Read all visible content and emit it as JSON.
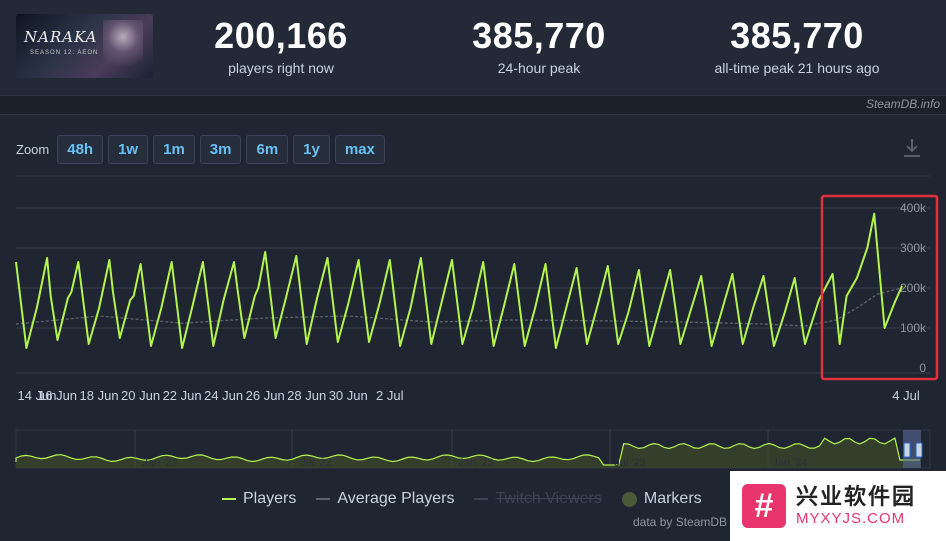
{
  "game": {
    "logo_title": "NARAKA",
    "logo_subtitle": "SEASON 12: AEON"
  },
  "stats": [
    {
      "value": "200,166",
      "label": "players right now"
    },
    {
      "value": "385,770",
      "label": "24-hour peak"
    },
    {
      "value": "385,770",
      "label": "all-time peak 21 hours ago"
    }
  ],
  "credit": "SteamDB.info",
  "zoom": {
    "label": "Zoom",
    "options": [
      "48h",
      "1w",
      "1m",
      "3m",
      "6m",
      "1y",
      "max"
    ]
  },
  "legend": {
    "players": "Players",
    "average": "Average Players",
    "twitch": "Twitch Viewers",
    "markers": "Markers"
  },
  "data_credit": "data by SteamDB",
  "watermark": {
    "main": "兴业软件园",
    "sub": "MYXYJS.COM",
    "logo_glyph": "#"
  },
  "colors": {
    "players": "#b4f44e",
    "average": "#5d6470",
    "twitch": "#3c4453",
    "highlight": "#e0323c",
    "navigator_fill": "#3d4a2a"
  },
  "chart_data": {
    "type": "line",
    "ylim": [
      0,
      400000
    ],
    "y_ticks": [
      "0",
      "100k",
      "200k",
      "300k",
      "400k"
    ],
    "x_ticks": [
      "14 Jun",
      "16 Jun",
      "18 Jun",
      "20 Jun",
      "22 Jun",
      "24 Jun",
      "26 Jun",
      "28 Jun",
      "30 Jun",
      "2 Jul",
      "4 Jul"
    ],
    "navigator_labels": [
      "Jan '22",
      "Jul '22",
      "Jan '23",
      "Jul '23",
      "Jan '24"
    ],
    "series": [
      {
        "name": "Players",
        "points": [
          [
            0,
            265000
          ],
          [
            0.5,
            50000
          ],
          [
            1,
            150000
          ],
          [
            1.5,
            275000
          ],
          [
            1.67,
            180000
          ],
          [
            2,
            70000
          ],
          [
            2.5,
            175000
          ],
          [
            2.67,
            190000
          ],
          [
            3,
            265000
          ],
          [
            3.5,
            60000
          ],
          [
            4,
            150000
          ],
          [
            4.5,
            270000
          ],
          [
            4.67,
            190000
          ],
          [
            5,
            75000
          ],
          [
            5.5,
            170000
          ],
          [
            5.67,
            180000
          ],
          [
            6,
            260000
          ],
          [
            6.5,
            55000
          ],
          [
            7,
            150000
          ],
          [
            7.5,
            265000
          ],
          [
            8,
            50000
          ],
          [
            8.5,
            155000
          ],
          [
            9,
            265000
          ],
          [
            9.5,
            55000
          ],
          [
            10,
            170000
          ],
          [
            10.5,
            265000
          ],
          [
            10.67,
            195000
          ],
          [
            11,
            75000
          ],
          [
            11.5,
            180000
          ],
          [
            11.67,
            200000
          ],
          [
            12,
            290000
          ],
          [
            12.5,
            75000
          ],
          [
            13,
            175000
          ],
          [
            13.5,
            280000
          ],
          [
            14,
            60000
          ],
          [
            14.5,
            175000
          ],
          [
            15,
            275000
          ],
          [
            15.5,
            65000
          ],
          [
            16,
            160000
          ],
          [
            16.5,
            270000
          ],
          [
            17,
            65000
          ],
          [
            17.5,
            160000
          ],
          [
            18,
            270000
          ],
          [
            18.5,
            55000
          ],
          [
            19,
            150000
          ],
          [
            19.5,
            275000
          ],
          [
            20,
            60000
          ],
          [
            20.5,
            165000
          ],
          [
            21,
            270000
          ],
          [
            21.5,
            60000
          ],
          [
            22,
            150000
          ],
          [
            22.5,
            265000
          ],
          [
            23,
            55000
          ],
          [
            23.5,
            155000
          ],
          [
            24,
            260000
          ],
          [
            24.5,
            55000
          ],
          [
            25,
            150000
          ],
          [
            25.5,
            260000
          ],
          [
            26,
            50000
          ],
          [
            26.5,
            150000
          ],
          [
            27,
            250000
          ],
          [
            27.5,
            60000
          ],
          [
            28,
            155000
          ],
          [
            28.5,
            255000
          ],
          [
            29,
            60000
          ],
          [
            29.5,
            140000
          ],
          [
            30,
            245000
          ],
          [
            30.5,
            55000
          ],
          [
            31,
            150000
          ],
          [
            31.5,
            245000
          ],
          [
            32,
            60000
          ],
          [
            32.5,
            145000
          ],
          [
            33,
            230000
          ],
          [
            33.5,
            55000
          ],
          [
            34,
            145000
          ],
          [
            34.5,
            235000
          ],
          [
            35,
            60000
          ],
          [
            35.5,
            150000
          ],
          [
            36,
            230000
          ],
          [
            36.5,
            55000
          ],
          [
            37,
            135000
          ],
          [
            37.5,
            225000
          ],
          [
            38,
            60000
          ],
          [
            38.67,
            170000
          ],
          [
            39.33,
            235000
          ],
          [
            39.67,
            60000
          ],
          [
            40,
            180000
          ],
          [
            40.5,
            225000
          ],
          [
            41,
            300000
          ],
          [
            41.33,
            385770
          ],
          [
            41.83,
            100000
          ],
          [
            42.33,
            165000
          ],
          [
            42.67,
            205000
          ]
        ]
      },
      {
        "name": "Average Players",
        "points": [
          [
            0,
            110000
          ],
          [
            4,
            130000
          ],
          [
            8,
            112000
          ],
          [
            12,
            125000
          ],
          [
            16,
            130000
          ],
          [
            20,
            115000
          ],
          [
            24,
            120000
          ],
          [
            28,
            118000
          ],
          [
            32,
            115000
          ],
          [
            36,
            110000
          ],
          [
            38,
            105000
          ],
          [
            39.5,
            120000
          ],
          [
            40.5,
            150000
          ],
          [
            41.5,
            185000
          ],
          [
            42.67,
            200000
          ]
        ]
      }
    ]
  }
}
